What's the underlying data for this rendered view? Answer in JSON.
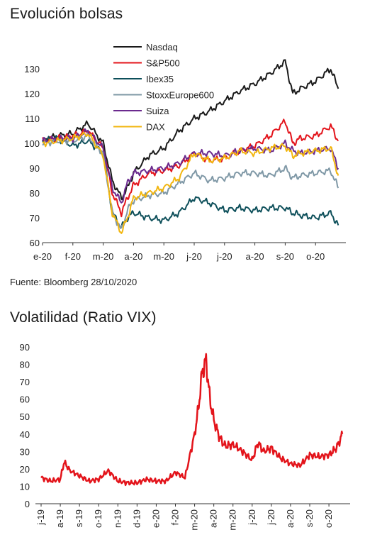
{
  "chart1": {
    "title": "Evolución bolsas",
    "source": "Fuente: Bloomberg 28/10/2020"
  },
  "chart2": {
    "title": "Volatilidad (Ratio VIX)"
  },
  "chart_data": [
    {
      "type": "line",
      "title": "Evolución bolsas",
      "x_tick_labels": [
        "e-20",
        "f-20",
        "m-20",
        "a-20",
        "m-20",
        "j-20",
        "j-20",
        "a-20",
        "s-20",
        "o-20"
      ],
      "ylim": [
        60,
        140
      ],
      "y_ticks": [
        60,
        70,
        80,
        90,
        100,
        110,
        120,
        130
      ],
      "legend_position": "top-center",
      "grid": false,
      "x": [
        "e-20",
        "e-20",
        "f-20",
        "f-20",
        "m-20",
        "m-20",
        "m-20",
        "m-20",
        "a-20",
        "a-20",
        "m-20",
        "m-20",
        "j-20",
        "j-20",
        "j-20",
        "j-20",
        "a-20",
        "a-20",
        "s-20",
        "s-20",
        "s-20",
        "o-20",
        "o-20",
        "o-20"
      ],
      "x_index": [
        0,
        0.5,
        1,
        1.5,
        2,
        2.3,
        2.6,
        2.8,
        3,
        3.5,
        4,
        4.5,
        5,
        5.5,
        6,
        6.5,
        7,
        7.5,
        8,
        8.25,
        8.5,
        9,
        9.5,
        9.75
      ],
      "series": [
        {
          "name": "Nasdaq",
          "color": "#1a1a1a",
          "values": [
            101,
            103,
            104,
            108,
            100,
            85,
            78,
            82,
            88,
            95,
            98,
            105,
            110,
            113,
            117,
            121,
            124,
            128,
            133,
            120,
            122,
            125,
            130,
            122
          ]
        },
        {
          "name": "S&P500",
          "color": "#e3141b",
          "values": [
            101,
            102,
            103,
            105,
            98,
            80,
            72,
            78,
            83,
            88,
            89,
            91,
            96,
            93,
            94,
            97,
            99,
            103,
            109,
            100,
            102,
            103,
            107,
            101
          ]
        },
        {
          "name": "Ibex35",
          "color": "#0d4f5a",
          "values": [
            101,
            102,
            99,
            101,
            96,
            72,
            66,
            70,
            72,
            70,
            69,
            72,
            78,
            76,
            73,
            74,
            73,
            74,
            74,
            72,
            71,
            70,
            72,
            67
          ]
        },
        {
          "name": "StoxxEurope600",
          "color": "#7f98a6",
          "values": [
            100,
            101,
            101,
            103,
            96,
            72,
            65,
            73,
            77,
            79,
            80,
            84,
            88,
            85,
            86,
            88,
            88,
            87,
            90,
            86,
            87,
            88,
            89,
            82
          ]
        },
        {
          "name": "Suiza",
          "color": "#6b2a8e",
          "values": [
            101,
            102,
            102,
            105,
            98,
            82,
            76,
            84,
            88,
            89,
            90,
            92,
            96,
            96,
            95,
            97,
            98,
            97,
            100,
            97,
            96,
            97,
            98,
            90
          ]
        },
        {
          "name": "DAX",
          "color": "#f2b60f",
          "values": [
            100,
            101,
            102,
            104,
            95,
            72,
            64,
            70,
            78,
            80,
            82,
            86,
            96,
            93,
            94,
            97,
            96,
            98,
            99,
            95,
            96,
            97,
            98,
            87
          ]
        }
      ]
    },
    {
      "type": "line",
      "title": "Volatilidad (Ratio VIX)",
      "x_tick_labels": [
        "j-19",
        "a-19",
        "s-19",
        "o-19",
        "n-19",
        "d-19",
        "e-20",
        "f-20",
        "m-20",
        "a-20",
        "m-20",
        "j-20",
        "j-20",
        "a-20",
        "s-20",
        "o-20"
      ],
      "ylim": [
        0,
        90
      ],
      "y_ticks": [
        0,
        10,
        20,
        30,
        40,
        50,
        60,
        70,
        80,
        90
      ],
      "grid": false,
      "series": [
        {
          "name": "",
          "color": "#e3141b",
          "x_index": [
            0,
            0.5,
            1,
            1.2,
            1.5,
            2,
            2.5,
            3,
            3.5,
            4,
            4.5,
            5,
            5.5,
            6,
            6.5,
            7,
            7.5,
            8,
            8.2,
            8.4,
            8.6,
            8.8,
            9,
            9.3,
            9.6,
            10,
            10.5,
            11,
            11.3,
            11.6,
            12,
            12.5,
            13,
            13.5,
            14,
            14.5,
            15,
            15.4,
            15.7
          ],
          "values": [
            15,
            13,
            14,
            24,
            19,
            16,
            13,
            14,
            19,
            13,
            12,
            12,
            14,
            13,
            13,
            18,
            15,
            40,
            55,
            76,
            82,
            60,
            48,
            38,
            33,
            34,
            30,
            25,
            35,
            30,
            32,
            26,
            23,
            22,
            28,
            27,
            28,
            32,
            40
          ]
        }
      ]
    }
  ]
}
